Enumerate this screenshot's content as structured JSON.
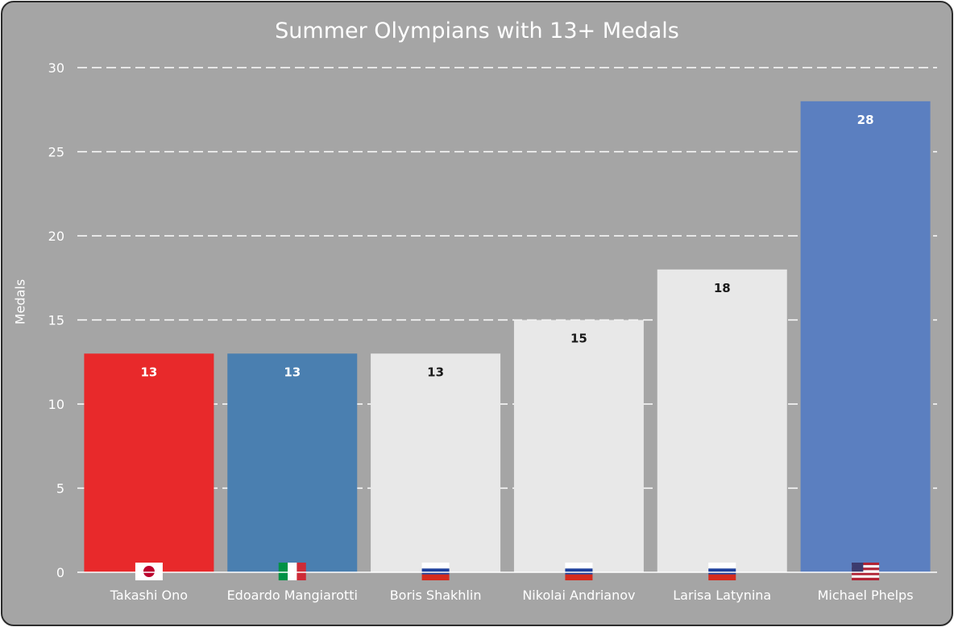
{
  "chart_data": {
    "type": "bar",
    "title": "Summer Olympians with 13+ Medals",
    "xlabel": "",
    "ylabel": "Medals",
    "ylim": [
      0,
      30
    ],
    "yticks": [
      0,
      5,
      10,
      15,
      20,
      25,
      30
    ],
    "grid": true,
    "legend": "none",
    "categories": [
      "Takashi Ono",
      "Edoardo Mangiarotti",
      "Boris Shakhlin",
      "Nikolai Andrianov",
      "Larisa Latynina",
      "Michael Phelps"
    ],
    "values": [
      13,
      13,
      13,
      15,
      18,
      28
    ],
    "bar_colors": [
      "#e8292b",
      "#4a7fb0",
      "#e8e8e8",
      "#e8e8e8",
      "#e8e8e8",
      "#5b7fc0"
    ],
    "label_colors": [
      "#ffffff",
      "#ffffff",
      "#1a1a1a",
      "#1a1a1a",
      "#1a1a1a",
      "#ffffff"
    ],
    "flags": [
      "japan-flag",
      "italy-flag",
      "russia-flag",
      "russia-flag",
      "russia-flag",
      "usa-flag"
    ]
  },
  "colors": {
    "background": "#a5a5a5",
    "border": "#2b2b2b",
    "gridline": "#ffffff",
    "text": "#ffffff"
  }
}
